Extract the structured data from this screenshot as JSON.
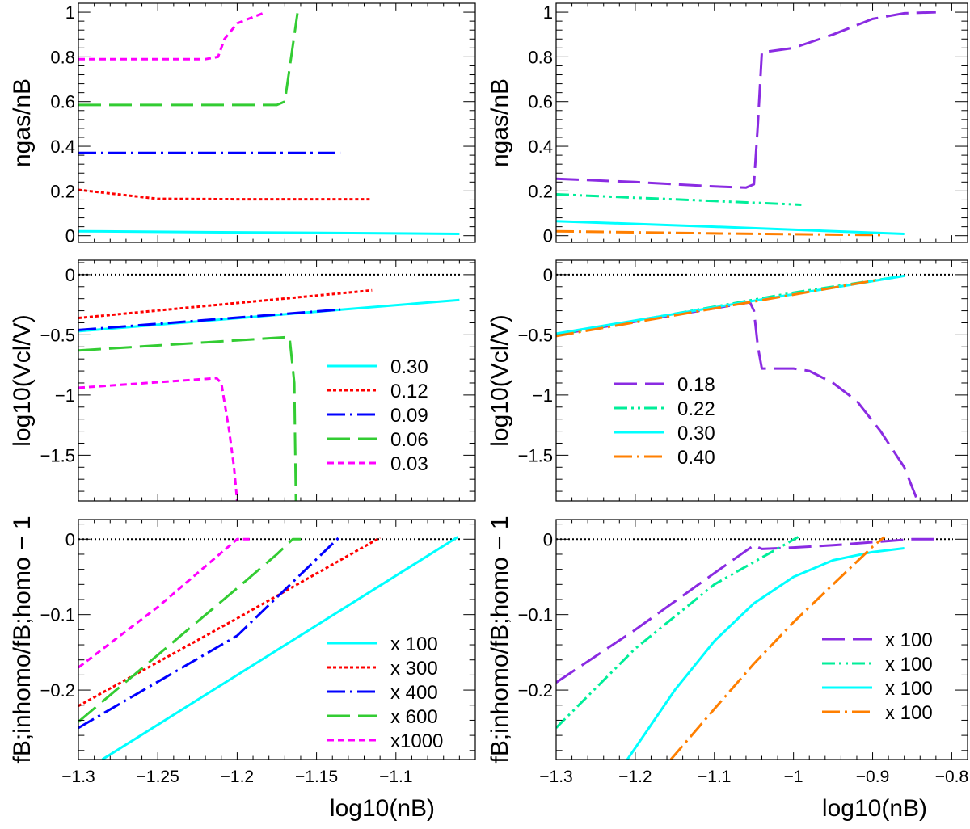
{
  "xlabel_left": "log10(nB)",
  "xlabel_right": "log10(nB)",
  "ylabels": {
    "gas": "ngas/nB",
    "vcl": "log10(Vcl/V)",
    "fb": "fB;inhomo/fB;homo − 1"
  },
  "chart_data": [
    {
      "id": "left-top",
      "type": "line",
      "xlim": [
        -1.3,
        -1.05
      ],
      "ylim": [
        -0.03,
        1.04
      ],
      "xticks": [],
      "yticks": [
        0,
        0.2,
        0.4,
        0.6,
        0.8,
        1
      ],
      "ytick_labels": [
        "0",
        "0.2",
        "0.4",
        "0.6",
        "0.8",
        "1"
      ],
      "ylabel": "ngas/nB",
      "series": [
        {
          "name": "0.30",
          "color": "#00ffff",
          "dash": "solid",
          "x": [
            -1.3,
            -1.2,
            -1.1,
            -1.06
          ],
          "y": [
            0.02,
            0.015,
            0.01,
            0.008
          ]
        },
        {
          "name": "0.12",
          "color": "#ff0000",
          "dash": "dotted",
          "x": [
            -1.3,
            -1.25,
            -1.2,
            -1.15,
            -1.115
          ],
          "y": [
            0.205,
            0.165,
            0.163,
            0.163,
            0.163
          ]
        },
        {
          "name": "0.09",
          "color": "#0000ff",
          "dash": "dashdot",
          "x": [
            -1.3,
            -1.2,
            -1.135
          ],
          "y": [
            0.37,
            0.37,
            0.37
          ]
        },
        {
          "name": "0.06",
          "color": "#33cc33",
          "dash": "longdash",
          "x": [
            -1.3,
            -1.2,
            -1.175,
            -1.17,
            -1.162
          ],
          "y": [
            0.585,
            0.585,
            0.585,
            0.6,
            0.995
          ]
        },
        {
          "name": "0.03",
          "color": "#ff00ff",
          "dash": "dashed",
          "x": [
            -1.3,
            -1.22,
            -1.212,
            -1.208,
            -1.2,
            -1.193,
            -1.182
          ],
          "y": [
            0.79,
            0.79,
            0.8,
            0.88,
            0.95,
            0.97,
            1.0
          ]
        }
      ]
    },
    {
      "id": "right-top",
      "type": "line",
      "xlim": [
        -1.3,
        -0.78
      ],
      "ylim": [
        -0.03,
        1.04
      ],
      "xticks": [],
      "yticks": [
        0,
        0.2,
        0.4,
        0.6,
        0.8,
        1
      ],
      "ytick_labels": [
        "0",
        "0.2",
        "0.4",
        "0.6",
        "0.8",
        "1"
      ],
      "ylabel": "ngas/nB",
      "series": [
        {
          "name": "0.18",
          "color": "#8a2be2",
          "dash": "longdash",
          "x": [
            -1.3,
            -1.2,
            -1.1,
            -1.06,
            -1.05,
            -1.045,
            -1.04,
            -1.0,
            -0.95,
            -0.9,
            -0.86,
            -0.82
          ],
          "y": [
            0.255,
            0.24,
            0.22,
            0.215,
            0.23,
            0.5,
            0.82,
            0.84,
            0.9,
            0.97,
            0.995,
            1.0
          ]
        },
        {
          "name": "0.22",
          "color": "#00ee99",
          "dash": "dashdotdot",
          "x": [
            -1.3,
            -1.2,
            -1.1,
            -1.0,
            -0.99
          ],
          "y": [
            0.185,
            0.17,
            0.155,
            0.14,
            0.138
          ]
        },
        {
          "name": "0.30",
          "color": "#00ffff",
          "dash": "solid",
          "x": [
            -1.3,
            -1.1,
            -0.86
          ],
          "y": [
            0.065,
            0.04,
            0.008
          ]
        },
        {
          "name": "0.40",
          "color": "#ff7f00",
          "dash": "dashdot",
          "x": [
            -1.3,
            -1.1,
            -0.89
          ],
          "y": [
            0.02,
            0.01,
            0.003
          ]
        }
      ]
    },
    {
      "id": "left-mid",
      "type": "line",
      "xlim": [
        -1.3,
        -1.05
      ],
      "ylim": [
        -1.88,
        0.12
      ],
      "xticks": [],
      "yticks": [
        0,
        -0.5,
        -1,
        -1.5
      ],
      "ytick_labels": [
        "0",
        "−0.5",
        "−1",
        "−1.5"
      ],
      "ylabel": "log10(Vcl/V)",
      "reference_line": 0,
      "legend": {
        "placement": "bottom-right",
        "entries": [
          "0.30",
          "0.12",
          "0.09",
          "0.06",
          "0.03"
        ]
      },
      "series": [
        {
          "name": "0.30",
          "color": "#00ffff",
          "dash": "solid",
          "x": [
            -1.3,
            -1.06
          ],
          "y": [
            -0.47,
            -0.21
          ]
        },
        {
          "name": "0.12",
          "color": "#ff0000",
          "dash": "dotted",
          "x": [
            -1.3,
            -1.115
          ],
          "y": [
            -0.36,
            -0.13
          ]
        },
        {
          "name": "0.09",
          "color": "#0000ff",
          "dash": "dashdot",
          "x": [
            -1.3,
            -1.135
          ],
          "y": [
            -0.46,
            -0.29
          ]
        },
        {
          "name": "0.06",
          "color": "#33cc33",
          "dash": "longdash",
          "x": [
            -1.3,
            -1.17,
            -1.167,
            -1.164,
            -1.163
          ],
          "y": [
            -0.63,
            -0.52,
            -0.52,
            -0.9,
            -1.88
          ]
        },
        {
          "name": "0.03",
          "color": "#ff00ff",
          "dash": "dashed",
          "x": [
            -1.3,
            -1.213,
            -1.21,
            -1.205,
            -1.202,
            -1.2
          ],
          "y": [
            -0.94,
            -0.86,
            -0.9,
            -1.3,
            -1.6,
            -1.88
          ]
        }
      ]
    },
    {
      "id": "right-mid",
      "type": "line",
      "xlim": [
        -1.3,
        -0.78
      ],
      "ylim": [
        -1.88,
        0.12
      ],
      "xticks": [],
      "yticks": [
        0,
        -0.5,
        -1,
        -1.5
      ],
      "ytick_labels": [
        "0",
        "−0.5",
        "−1",
        "−1.5"
      ],
      "ylabel": "log10(Vcl/V)",
      "reference_line": 0,
      "legend": {
        "placement": "bottom-left",
        "entries": [
          "0.18",
          "0.22",
          "0.30",
          "0.40"
        ]
      },
      "series": [
        {
          "name": "0.18",
          "color": "#8a2be2",
          "dash": "longdash",
          "x": [
            -1.3,
            -1.1,
            -1.055,
            -1.05,
            -1.045,
            -1.04,
            -1.0,
            -0.98,
            -0.95,
            -0.92,
            -0.89,
            -0.86,
            -0.845
          ],
          "y": [
            -0.5,
            -0.28,
            -0.23,
            -0.3,
            -0.6,
            -0.78,
            -0.78,
            -0.8,
            -0.9,
            -1.05,
            -1.3,
            -1.6,
            -1.85
          ]
        },
        {
          "name": "0.22",
          "color": "#00ee99",
          "dash": "dashdotdot",
          "x": [
            -1.3,
            -1.0,
            -0.86
          ],
          "y": [
            -0.5,
            -0.15,
            -0.01
          ]
        },
        {
          "name": "0.30",
          "color": "#00ffff",
          "dash": "solid",
          "x": [
            -1.3,
            -0.86
          ],
          "y": [
            -0.49,
            -0.01
          ]
        },
        {
          "name": "0.40",
          "color": "#ff7f00",
          "dash": "dashdot",
          "x": [
            -1.3,
            -0.89
          ],
          "y": [
            -0.51,
            -0.04
          ]
        }
      ]
    },
    {
      "id": "left-bot",
      "type": "line",
      "xlim": [
        -1.3,
        -1.05
      ],
      "ylim": [
        -0.292,
        0.026
      ],
      "xticks": [
        -1.3,
        -1.25,
        -1.2,
        -1.15,
        -1.1
      ],
      "xtick_labels": [
        "−1.3",
        "−1.25",
        "−1.2",
        "−1.15",
        "−1.1"
      ],
      "yticks": [
        0,
        -0.1,
        -0.2
      ],
      "ytick_labels": [
        "0",
        "−0.1",
        "−0.2"
      ],
      "ylabel": "fB;inhomo/fB;homo − 1",
      "xlabel": "log10(nB)",
      "reference_line": 0,
      "legend": {
        "placement": "bottom-right",
        "entries": [
          "x 100",
          "x 300",
          "x 400",
          "x 600",
          "x1000"
        ]
      },
      "series": [
        {
          "name": "x 100",
          "color": "#00ffff",
          "dash": "solid",
          "x": [
            -1.285,
            -1.061
          ],
          "y": [
            -0.292,
            0.003
          ]
        },
        {
          "name": "x 300",
          "color": "#ff0000",
          "dash": "dotted",
          "x": [
            -1.3,
            -1.2,
            -1.11
          ],
          "y": [
            -0.221,
            -0.105,
            0.002
          ]
        },
        {
          "name": "x 400",
          "color": "#0000ff",
          "dash": "dashdot",
          "x": [
            -1.3,
            -1.2,
            -1.136
          ],
          "y": [
            -0.25,
            -0.128,
            0.002
          ]
        },
        {
          "name": "x 600",
          "color": "#33cc33",
          "dash": "longdash",
          "x": [
            -1.3,
            -1.2,
            -1.175,
            -1.165,
            -1.16
          ],
          "y": [
            -0.242,
            -0.065,
            -0.02,
            0,
            0
          ]
        },
        {
          "name": "x1000",
          "color": "#ff00ff",
          "dash": "dashed",
          "x": [
            -1.3,
            -1.25,
            -1.2,
            -1.19
          ],
          "y": [
            -0.17,
            -0.09,
            0,
            0
          ]
        }
      ]
    },
    {
      "id": "right-bot",
      "type": "line",
      "xlim": [
        -1.3,
        -0.78
      ],
      "ylim": [
        -0.292,
        0.026
      ],
      "xticks": [
        -1.3,
        -1.2,
        -1.1,
        -1,
        -0.9,
        -0.8
      ],
      "xtick_labels": [
        "−1.3",
        "−1.2",
        "−1.1",
        "−1",
        "−0.9",
        "−0.8"
      ],
      "yticks": [
        0,
        -0.1,
        -0.2
      ],
      "ytick_labels": [
        "0",
        "−0.1",
        "−0.2"
      ],
      "ylabel": "fB;inhomo/fB;homo − 1",
      "xlabel": "log10(nB)",
      "reference_line": 0,
      "legend": {
        "placement": "bottom-right",
        "entries": [
          "x 100",
          "x 100",
          "x 100",
          "x 100"
        ]
      },
      "series": [
        {
          "name": "x 100",
          "color": "#8a2be2",
          "dash": "longdash",
          "x": [
            -1.3,
            -1.2,
            -1.1,
            -1.05,
            -1.04,
            -1.0,
            -0.95,
            -0.9,
            -0.85,
            -0.82
          ],
          "y": [
            -0.19,
            -0.12,
            -0.045,
            -0.008,
            -0.013,
            -0.011,
            -0.008,
            -0.004,
            0,
            0
          ]
        },
        {
          "name": "x 100",
          "color": "#00ee99",
          "dash": "dashdotdot",
          "x": [
            -1.3,
            -1.2,
            -1.1,
            -0.994
          ],
          "y": [
            -0.25,
            -0.145,
            -0.06,
            0.003
          ]
        },
        {
          "name": "x 100",
          "color": "#00ffff",
          "dash": "solid",
          "x": [
            -1.21,
            -1.15,
            -1.1,
            -1.05,
            -1.0,
            -0.95,
            -0.9,
            -0.86
          ],
          "y": [
            -0.292,
            -0.2,
            -0.135,
            -0.085,
            -0.05,
            -0.028,
            -0.017,
            -0.012
          ]
        },
        {
          "name": "x 100",
          "color": "#ff7f00",
          "dash": "dashdot",
          "x": [
            -1.155,
            -1.1,
            -1.05,
            -1.0,
            -0.95,
            -0.9,
            -0.885
          ],
          "y": [
            -0.292,
            -0.225,
            -0.165,
            -0.11,
            -0.06,
            -0.01,
            0.003
          ]
        }
      ]
    }
  ]
}
